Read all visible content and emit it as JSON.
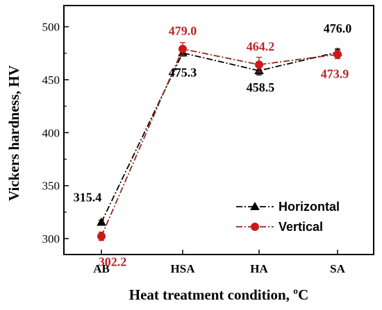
{
  "chart_data": {
    "type": "line",
    "xlabel": "Heat treatment condition, ºC",
    "ylabel": "Vickers hardness, HV",
    "categories": [
      "AB",
      "HSA",
      "HA",
      "SA"
    ],
    "ylim": [
      285,
      520
    ],
    "yticks": [
      300,
      350,
      400,
      450,
      500
    ],
    "ytick_labels": [
      "300",
      "350",
      "400",
      "450",
      "500"
    ],
    "grid": false,
    "legend_position": "bottom-right",
    "series": [
      {
        "name": "Horizontal",
        "values": [
          315.4,
          475.3,
          458.5,
          476.0
        ],
        "labels": [
          "315.4",
          "475.3",
          "458.5",
          "476.0"
        ],
        "errors": [
          2,
          3,
          4,
          3
        ],
        "color": "#000000",
        "label_color": "#000000",
        "marker": "triangle",
        "line_style": "dash-dot"
      },
      {
        "name": "Vertical",
        "values": [
          302.2,
          479.0,
          464.2,
          473.9
        ],
        "labels": [
          "302.2",
          "479.0",
          "464.2",
          "473.9"
        ],
        "errors": [
          4,
          6,
          7,
          4
        ],
        "color": "#8b2a1a",
        "label_color": "#b8262b",
        "marker": "circle",
        "marker_color": "#cc1a1a",
        "line_style": "dash-dot"
      }
    ]
  }
}
